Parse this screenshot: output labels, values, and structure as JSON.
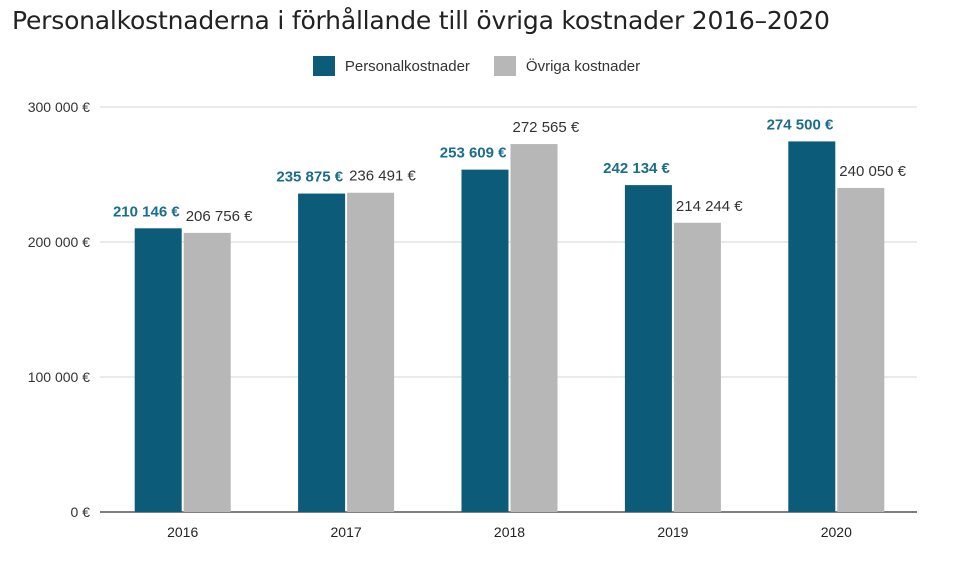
{
  "chart_data": {
    "type": "bar",
    "title": "Personalkostnaderna i förhållande till övriga kostnader 2016–2020",
    "categories": [
      "2016",
      "2017",
      "2018",
      "2019",
      "2020"
    ],
    "series": [
      {
        "name": "Personalkostnader",
        "color": "#0b5b79",
        "values": [
          210146,
          235875,
          253609,
          242134,
          274500
        ],
        "labels": [
          "210 146 €",
          "235 875 €",
          "253 609 €",
          "242 134 €",
          "274 500 €"
        ]
      },
      {
        "name": "Övriga kostnader",
        "color": "#b7b7b7",
        "values": [
          206756,
          236491,
          272565,
          214244,
          240050
        ],
        "labels": [
          "206 756 €",
          "236 491 €",
          "272 565 €",
          "214 244 €",
          "240 050 €"
        ]
      }
    ],
    "ylim": [
      0,
      300000
    ],
    "yticks": [
      0,
      100000,
      200000,
      300000
    ],
    "ytick_labels": [
      "0 €",
      "100 000 €",
      "200 000 €",
      "300 000 €"
    ],
    "grid": true,
    "legend_position": "top"
  }
}
